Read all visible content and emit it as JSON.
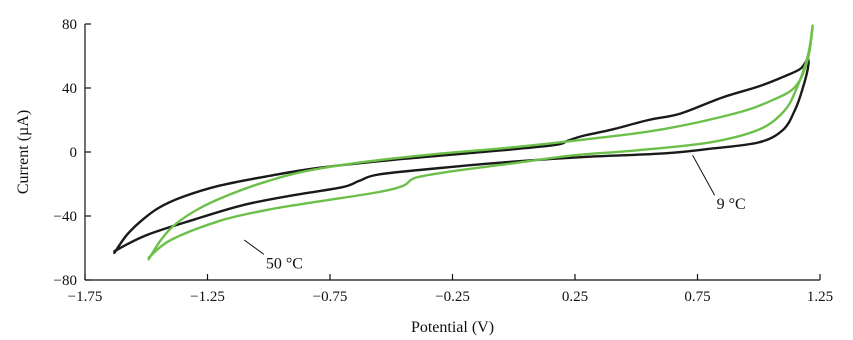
{
  "chart_data": {
    "type": "line",
    "xlabel": "Potential (V)",
    "ylabel": "Current (µA)",
    "xlim": [
      -1.75,
      1.25
    ],
    "ylim": [
      -80,
      80
    ],
    "xticks": [
      -1.75,
      -1.25,
      -0.75,
      -0.25,
      0.25,
      0.75,
      1.25
    ],
    "yticks": [
      -80,
      -40,
      0,
      40,
      80
    ],
    "xtick_labels": [
      "−1.75",
      "−1.25",
      "−0.75",
      "−0.25",
      "0.25",
      "0.75",
      "1.25"
    ],
    "ytick_labels": [
      "−80",
      "−40",
      "0",
      "40",
      "80"
    ],
    "grid": false,
    "series": [
      {
        "name": "9 °C",
        "color": "#1a1a1a",
        "points": [
          [
            -1.63,
            -63
          ],
          [
            -1.58,
            -52
          ],
          [
            -1.52,
            -43
          ],
          [
            -1.45,
            -35
          ],
          [
            -1.35,
            -28
          ],
          [
            -1.2,
            -21
          ],
          [
            -1.0,
            -15
          ],
          [
            -0.8,
            -10
          ],
          [
            -0.5,
            -5
          ],
          [
            -0.2,
            -1
          ],
          [
            0.15,
            4
          ],
          [
            0.22,
            7
          ],
          [
            0.28,
            10
          ],
          [
            0.4,
            14
          ],
          [
            0.55,
            20
          ],
          [
            0.68,
            24
          ],
          [
            0.85,
            34
          ],
          [
            1.0,
            41
          ],
          [
            1.1,
            47
          ],
          [
            1.17,
            52
          ],
          [
            1.2,
            58
          ],
          [
            1.2,
            52
          ],
          [
            1.18,
            40
          ],
          [
            1.15,
            27
          ],
          [
            1.1,
            14
          ],
          [
            1.0,
            6
          ],
          [
            0.8,
            2
          ],
          [
            0.6,
            -1
          ],
          [
            0.3,
            -3
          ],
          [
            0.0,
            -6
          ],
          [
            -0.3,
            -10
          ],
          [
            -0.55,
            -14
          ],
          [
            -0.63,
            -18
          ],
          [
            -0.7,
            -22
          ],
          [
            -0.9,
            -27
          ],
          [
            -1.1,
            -33
          ],
          [
            -1.3,
            -42
          ],
          [
            -1.5,
            -52
          ],
          [
            -1.63,
            -62
          ]
        ]
      },
      {
        "name": "50 °C",
        "color": "#6cc04a",
        "points": [
          [
            -1.49,
            -67
          ],
          [
            -1.44,
            -55
          ],
          [
            -1.38,
            -45
          ],
          [
            -1.28,
            -35
          ],
          [
            -1.15,
            -26
          ],
          [
            -1.0,
            -18
          ],
          [
            -0.85,
            -12
          ],
          [
            -0.6,
            -6
          ],
          [
            -0.3,
            -1
          ],
          [
            0.0,
            3
          ],
          [
            0.3,
            8
          ],
          [
            0.6,
            14
          ],
          [
            0.9,
            24
          ],
          [
            1.05,
            32
          ],
          [
            1.15,
            41
          ],
          [
            1.2,
            58
          ],
          [
            1.22,
            79
          ],
          [
            1.2,
            60
          ],
          [
            1.15,
            38
          ],
          [
            1.1,
            25
          ],
          [
            1.0,
            14
          ],
          [
            0.8,
            6
          ],
          [
            0.5,
            1
          ],
          [
            0.25,
            -2
          ],
          [
            0.0,
            -7
          ],
          [
            -0.25,
            -12
          ],
          [
            -0.4,
            -16
          ],
          [
            -0.45,
            -21
          ],
          [
            -0.55,
            -25
          ],
          [
            -0.8,
            -31
          ],
          [
            -1.0,
            -36
          ],
          [
            -1.2,
            -43
          ],
          [
            -1.4,
            -55
          ],
          [
            -1.49,
            -66
          ]
        ]
      }
    ],
    "annotations": [
      {
        "text": "9 °C",
        "point": [
          0.73,
          -2
        ],
        "label_at": [
          0.82,
          -32
        ]
      },
      {
        "text": "50 °C",
        "point": [
          -1.1,
          -55
        ],
        "label_at": [
          -1.02,
          -69
        ]
      }
    ]
  }
}
